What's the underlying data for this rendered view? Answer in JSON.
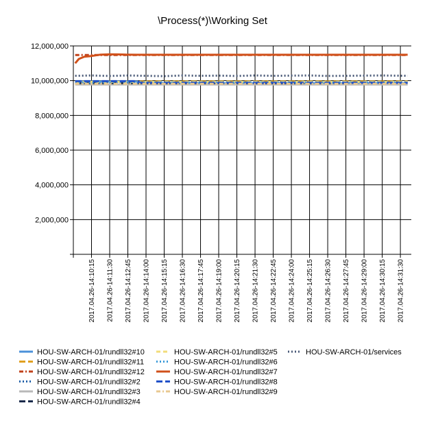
{
  "chart_data": {
    "type": "line",
    "title": "\\Process(*)\\Working Set",
    "xlabel": "",
    "ylabel": "",
    "ylim": [
      0,
      12000000
    ],
    "yticks": [
      0,
      2000000,
      4000000,
      6000000,
      8000000,
      10000000,
      12000000
    ],
    "ytick_labels": [
      "",
      "2,000,000",
      "4,000,000",
      "6,000,000",
      "8,000,000",
      "10,000,000",
      "12,000,000"
    ],
    "xlim": [
      0,
      18.6
    ],
    "xticks": [
      "2017.04.26-14:10:15",
      "2017.04.26-14:11:30",
      "2017.04.26-14:12:45",
      "2017.04.26-14:14:00",
      "2017.04.26-14:15:15",
      "2017.04.26-14:16:30",
      "2017.04.26-14:17:45",
      "2017.04.26-14:19:00",
      "2017.04.26-14:20:15",
      "2017.04.26-14:21:30",
      "2017.04.26-14:22:45",
      "2017.04.26-14:24:00",
      "2017.04.26-14:25:15",
      "2017.04.26-14:26:30",
      "2017.04.26-14:27:45",
      "2017.04.26-14:29:00",
      "2017.04.26-14:30:15",
      "2017.04.26-14:31:30"
    ],
    "grid": true,
    "legend_position": "bottom",
    "series": [
      {
        "name": "HOU-SW-ARCH-01/rundll32#10",
        "color": "#4a90d9",
        "dash": "solid",
        "x": [
          0.1,
          3.5,
          3.7,
          18.4
        ],
        "y": [
          9950000,
          9950000,
          9850000,
          9850000
        ]
      },
      {
        "name": "HOU-SW-ARCH-01/rundll32#11",
        "color": "#e0a020",
        "dash": "longdash",
        "x": [
          0.1,
          3.5,
          3.7,
          18.4
        ],
        "y": [
          9900000,
          9900000,
          9950000,
          9950000
        ]
      },
      {
        "name": "HOU-SW-ARCH-01/rundll32#12",
        "color": "#c0401a",
        "dash": "dashdot",
        "x": [
          0.1,
          18.4
        ],
        "y": [
          11480000,
          11480000
        ]
      },
      {
        "name": "HOU-SW-ARCH-01/rundll32#2",
        "color": "#1f5fa8",
        "dash": "dot",
        "x": [
          0.1,
          18.4
        ],
        "y": [
          9880000,
          9880000
        ]
      },
      {
        "name": "HOU-SW-ARCH-01/rundll32#3",
        "color": "#b8b8b8",
        "dash": "solid",
        "x": [
          0.1,
          18.4
        ],
        "y": [
          9780000,
          9780000
        ]
      },
      {
        "name": "HOU-SW-ARCH-01/rundll32#4",
        "color": "#1a2a4a",
        "dash": "longdash",
        "x": [
          0.1,
          15.0
        ],
        "y": [
          9860000,
          9860000
        ]
      },
      {
        "name": "HOU-SW-ARCH-01/rundll32#5",
        "color": "#f2dc7a",
        "dash": "dash",
        "x": [
          0.1,
          18.4
        ],
        "y": [
          9930000,
          9930000
        ]
      },
      {
        "name": "HOU-SW-ARCH-01/rundll32#6",
        "color": "#3a9ad9",
        "dash": "dot",
        "x": [
          0.1,
          18.4
        ],
        "y": [
          9900000,
          9900000
        ]
      },
      {
        "name": "HOU-SW-ARCH-01/rundll32#7",
        "color": "#d0501a",
        "dash": "solid",
        "x": [
          0.1,
          0.3,
          0.6,
          1.0,
          1.5,
          2.0,
          2.5,
          3.0,
          3.5,
          18.4
        ],
        "y": [
          11000000,
          11250000,
          11380000,
          11420000,
          11500000,
          11520000,
          11510000,
          11500000,
          11490000,
          11490000
        ]
      },
      {
        "name": "HOU-SW-ARCH-01/rundll32#8",
        "color": "#2050c8",
        "dash": "longdash",
        "x": [
          0.1,
          3.5,
          3.7,
          18.4
        ],
        "y": [
          9970000,
          9970000,
          9880000,
          9880000
        ]
      },
      {
        "name": "HOU-SW-ARCH-01/rundll32#9",
        "color": "#e8c890",
        "dash": "dashdot",
        "x": [
          0.1,
          18.4
        ],
        "y": [
          9820000,
          9820000
        ]
      },
      {
        "name": "HOU-SW-ARCH-01/services",
        "color": "#4a5a78",
        "dash": "dot",
        "x": [
          0.1,
          1.0,
          2.0,
          3.0,
          4.0,
          5.0,
          6.0,
          7.0,
          8.0,
          9.0,
          10.0,
          11.0,
          12.0,
          13.0,
          14.0,
          15.0,
          16.0,
          17.0,
          18.4
        ],
        "y": [
          10280000,
          10300000,
          10270000,
          10300000,
          10280000,
          10260000,
          10300000,
          10280000,
          10290000,
          10270000,
          10300000,
          10280000,
          10290000,
          10300000,
          10270000,
          10280000,
          10290000,
          10300000,
          10280000
        ]
      }
    ]
  }
}
